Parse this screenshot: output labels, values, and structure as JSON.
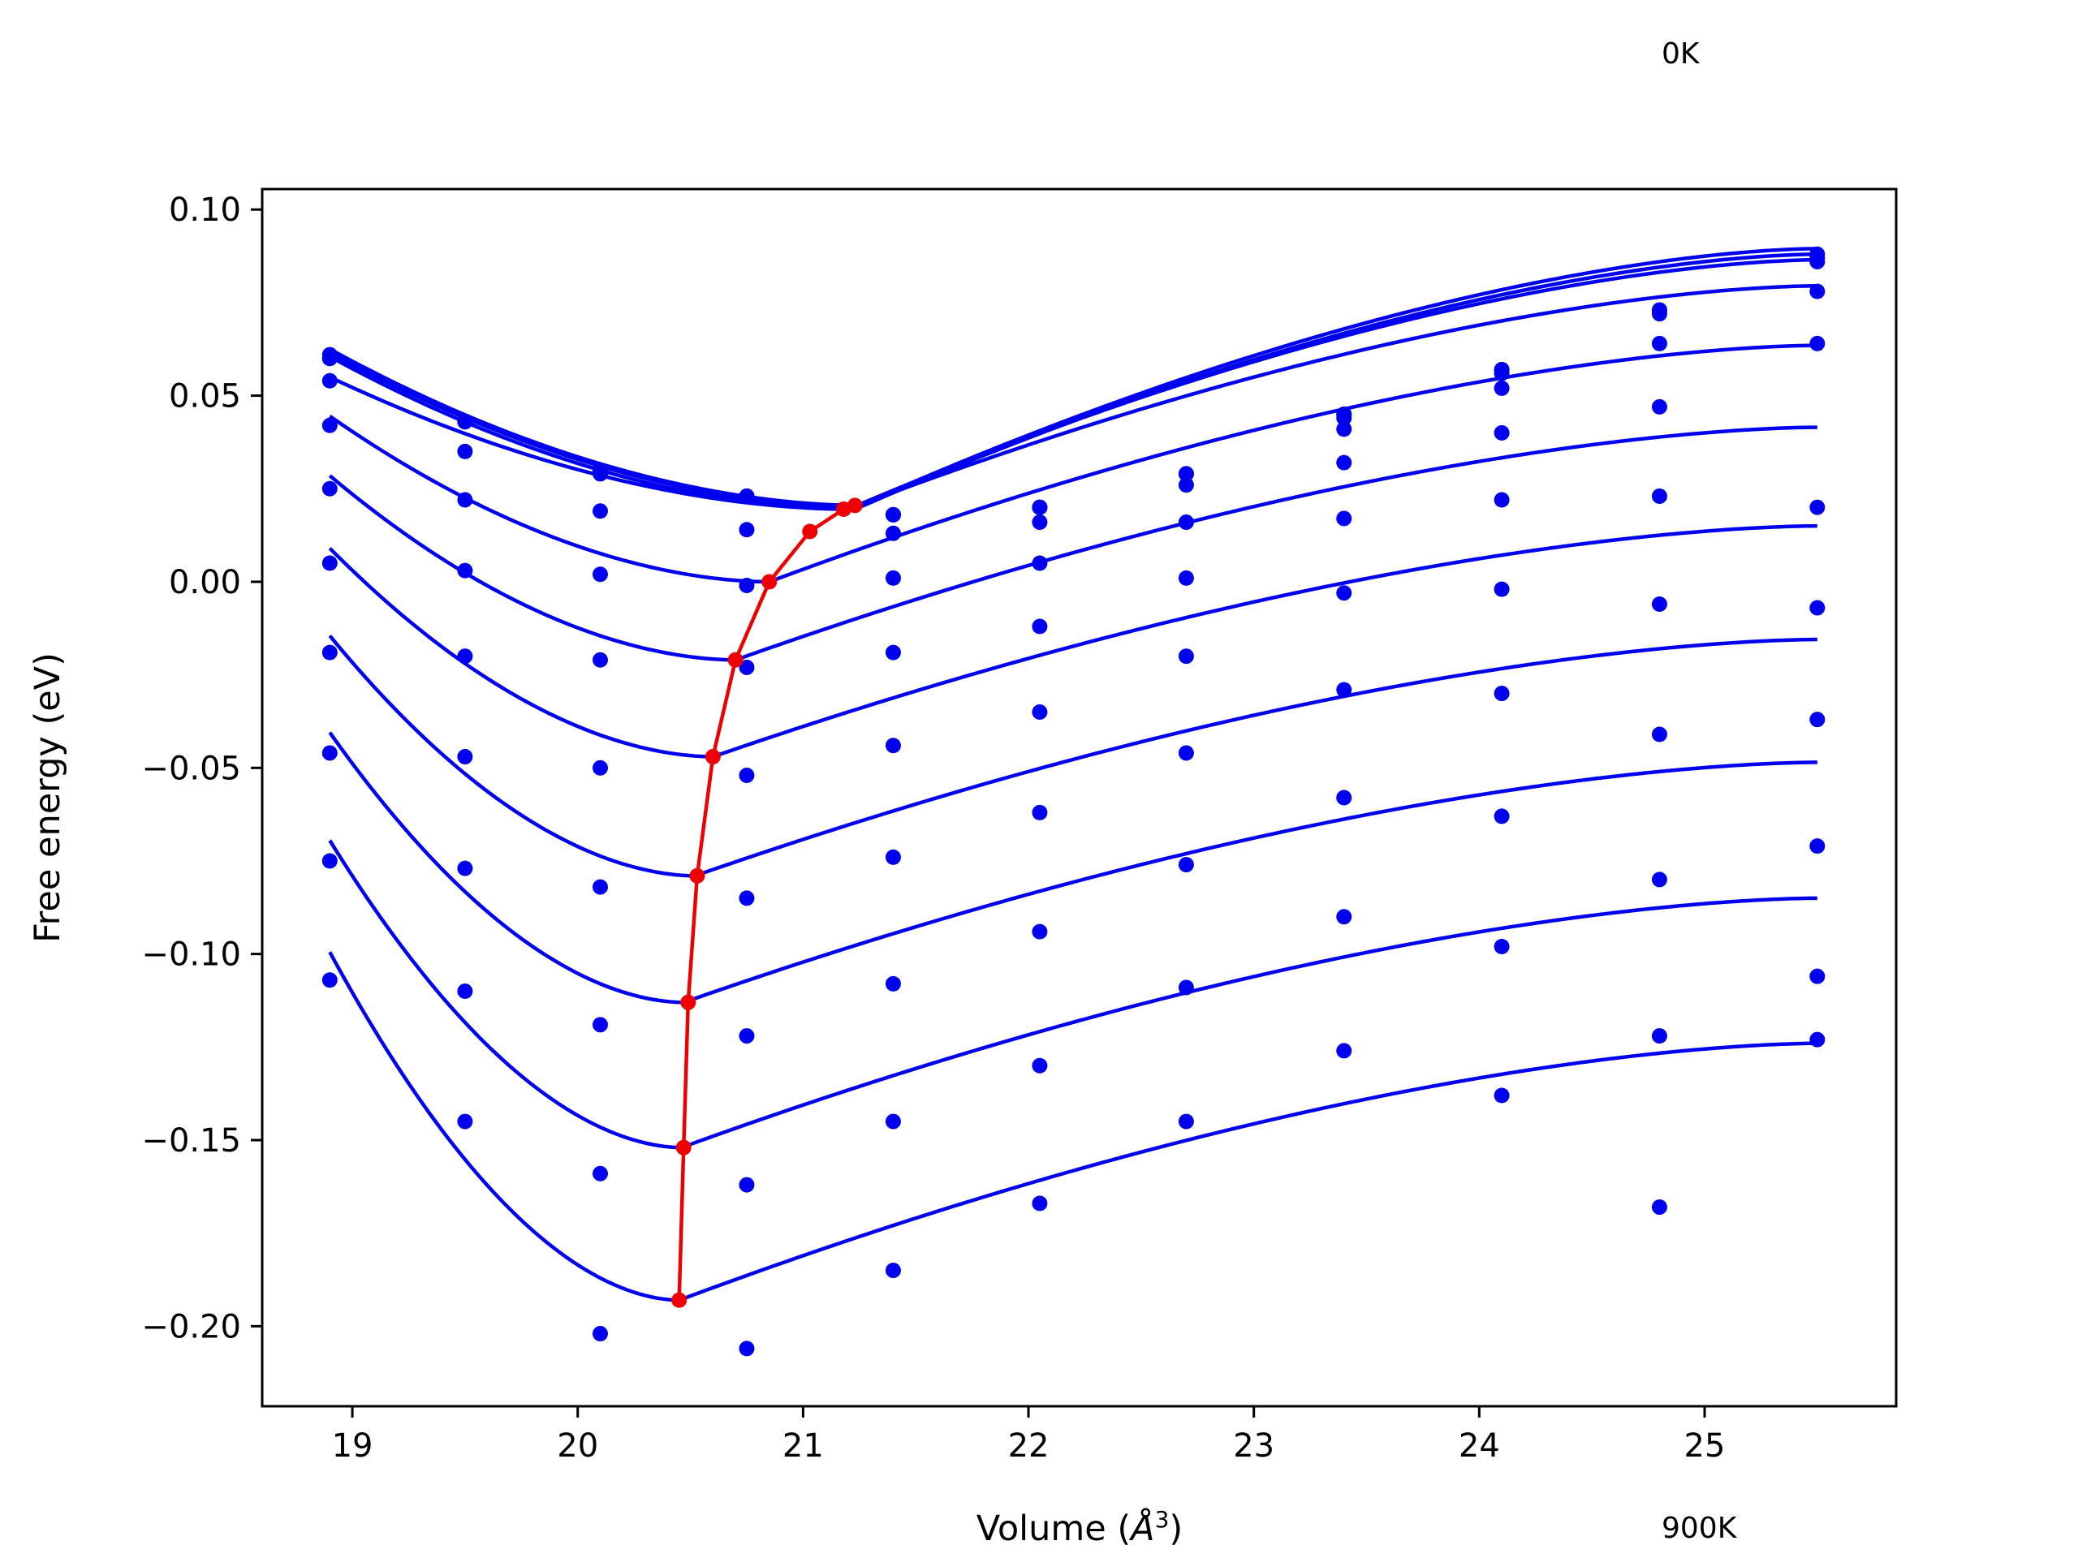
{
  "chart_data": {
    "type": "line",
    "xlabel_main": "Volume (",
    "xlabel_sym": "Å",
    "xlabel_exp": "3",
    "xlabel_end": ")",
    "ylabel": "Free energy (eV)",
    "xlim": [
      18.6,
      25.85
    ],
    "ylim": [
      -0.2215,
      0.1055
    ],
    "xticks": [
      19,
      20,
      21,
      22,
      23,
      24,
      25
    ],
    "xtick_labels": [
      "19",
      "20",
      "21",
      "22",
      "23",
      "24",
      "25"
    ],
    "yticks": [
      0.1,
      0.05,
      0.0,
      -0.05,
      -0.1,
      -0.15,
      -0.2
    ],
    "ytick_labels": [
      "0.10",
      "0.05",
      "0.00",
      "−0.05",
      "−0.10",
      "−0.15",
      "−0.20"
    ],
    "annotations": {
      "top": "0K",
      "bottom": "900K"
    },
    "colors": {
      "fit": "#0000ee",
      "points": "#0000ee",
      "min_path": "#ee0000",
      "frame": "#000000"
    },
    "volumes": [
      18.9,
      19.5,
      20.1,
      20.75,
      21.4,
      22.05,
      22.7,
      23.4,
      24.1,
      24.8,
      25.5
    ],
    "series": [
      {
        "x": [
          18.9,
          19.5,
          20.1,
          20.75,
          21.4,
          22.05,
          22.7,
          23.4,
          24.1,
          24.8,
          25.5
        ],
        "points": [
          0.06,
          0.043,
          0.03,
          0.023,
          0.018,
          0.02,
          0.029,
          0.045,
          0.057,
          0.073,
          0.088
        ],
        "min": [
          21.25,
          0.0205
        ],
        "curvature": 0.0228,
        "skew": 0.2,
        "end_low": 0.0625,
        "end_high": 0.0895
      },
      {
        "x": [
          18.9,
          19.5,
          20.1,
          20.75,
          21.4,
          22.05,
          22.7,
          23.4,
          24.1,
          24.8,
          25.5
        ],
        "points": [
          0.061,
          0.043,
          0.03,
          0.023,
          0.018,
          0.02,
          0.029,
          0.045,
          0.057,
          0.073,
          0.087
        ],
        "min": [
          21.25,
          0.02
        ],
        "curvature": 0.0228,
        "skew": 0.2,
        "end_low": 0.0615,
        "end_high": 0.088
      },
      {
        "x": [
          18.9,
          19.5,
          20.1,
          20.75,
          21.4,
          22.05,
          22.7,
          23.4,
          24.1,
          24.8,
          25.5
        ],
        "points": [
          0.06,
          0.043,
          0.029,
          0.023,
          0.018,
          0.02,
          0.029,
          0.044,
          0.056,
          0.072,
          0.086
        ],
        "min": [
          21.2,
          0.0195
        ],
        "curvature": 0.0228,
        "skew": 0.2,
        "end_low": 0.0605,
        "end_high": 0.0865
      },
      {
        "x": [
          18.9,
          19.5,
          20.1,
          20.75,
          21.4,
          22.05,
          22.7,
          23.4,
          24.1,
          24.8,
          25.5
        ],
        "points": [
          0.054,
          0.035,
          0.019,
          0.014,
          0.013,
          0.016,
          0.026,
          0.041,
          0.052,
          0.064,
          0.078
        ],
        "min": [
          21.2,
          0.0195
        ],
        "curvature": 0.0185,
        "skew": 0.2,
        "end_low": 0.055,
        "end_high": 0.0795
      },
      {
        "x": [
          18.9,
          19.5,
          20.1,
          20.75,
          21.4,
          22.05,
          22.7,
          23.4,
          24.1,
          24.8,
          25.5
        ],
        "points": [
          0.042,
          0.022,
          0.002,
          -0.001,
          0.001,
          0.005,
          0.016,
          0.032,
          0.04,
          0.047,
          0.064
        ],
        "min": [
          20.85,
          0.0
        ],
        "curvature": 0.0145,
        "skew": 0.22,
        "end_low": 0.0445,
        "end_high": 0.0635
      },
      {
        "x": [
          18.9,
          19.5,
          20.1,
          20.75,
          21.4,
          22.05,
          22.7,
          23.4,
          24.1,
          24.8,
          25.5
        ],
        "points": [
          0.025,
          0.003,
          -0.021,
          -0.023,
          -0.019,
          -0.012,
          0.001,
          0.017,
          0.022,
          0.023,
          0.02
        ],
        "min": [
          20.7,
          -0.021
        ],
        "curvature": 0.0125,
        "skew": 0.25,
        "end_low": 0.0285,
        "end_high": 0.0415
      },
      {
        "x": [
          18.9,
          19.5,
          20.1,
          20.75,
          21.4,
          22.05,
          22.7,
          23.4,
          24.1,
          24.8,
          25.5
        ],
        "points": [
          0.005,
          -0.02,
          -0.05,
          -0.052,
          -0.044,
          -0.035,
          -0.02,
          -0.003,
          -0.002,
          -0.006,
          -0.007
        ],
        "min": [
          20.6,
          -0.047
        ],
        "curvature": 0.011,
        "skew": 0.28,
        "end_low": 0.009,
        "end_high": 0.015
      },
      {
        "x": [
          18.9,
          19.5,
          20.1,
          20.75,
          21.4,
          22.05,
          22.7,
          23.4,
          24.1,
          24.8,
          25.5
        ],
        "points": [
          -0.019,
          -0.047,
          -0.082,
          -0.085,
          -0.074,
          -0.062,
          -0.046,
          -0.029,
          -0.03,
          -0.041,
          -0.037
        ],
        "min": [
          20.52,
          -0.079
        ],
        "curvature": 0.01,
        "skew": 0.3,
        "end_low": -0.0145,
        "end_high": -0.0155
      },
      {
        "x": [
          18.9,
          19.5,
          20.1,
          20.75,
          21.4,
          22.05,
          22.7,
          23.4,
          24.1,
          24.8,
          25.5
        ],
        "points": [
          -0.046,
          -0.077,
          -0.119,
          -0.122,
          -0.108,
          -0.094,
          -0.076,
          -0.058,
          -0.063,
          -0.08,
          -0.071
        ],
        "min": [
          20.47,
          -0.113
        ],
        "curvature": 0.0095,
        "skew": 0.33,
        "end_low": -0.0405,
        "end_high": -0.0485
      },
      {
        "x": [
          18.9,
          19.5,
          20.1,
          20.75,
          21.4,
          22.05,
          22.7,
          23.4,
          24.1,
          24.8,
          25.5
        ],
        "points": [
          -0.075,
          -0.11,
          -0.159,
          -0.162,
          -0.145,
          -0.13,
          -0.109,
          -0.09,
          -0.098,
          -0.122,
          -0.106
        ],
        "min": [
          20.46,
          -0.152
        ],
        "curvature": 0.009,
        "skew": 0.36,
        "end_low": -0.0695,
        "end_high": -0.085
      },
      {
        "x": [
          18.9,
          19.5,
          20.1,
          20.75,
          21.4,
          22.05,
          22.7,
          23.4,
          24.1,
          24.8,
          25.5
        ],
        "points": [
          -0.107,
          -0.145,
          -0.202,
          -0.206,
          -0.185,
          -0.167,
          -0.145,
          -0.126,
          -0.138,
          -0.168,
          -0.123
        ],
        "min": [
          20.45,
          -0.193
        ],
        "curvature": 0.0085,
        "skew": 0.4,
        "end_low": -0.0995,
        "end_high": -0.124
      }
    ],
    "min_path": {
      "x": [
        21.23,
        21.18,
        21.03,
        20.85,
        20.7,
        20.6,
        20.53,
        20.49,
        20.47,
        20.45
      ],
      "y": [
        0.0205,
        0.0195,
        0.0135,
        0.0,
        -0.021,
        -0.047,
        -0.079,
        -0.113,
        -0.152,
        -0.193
      ]
    }
  }
}
